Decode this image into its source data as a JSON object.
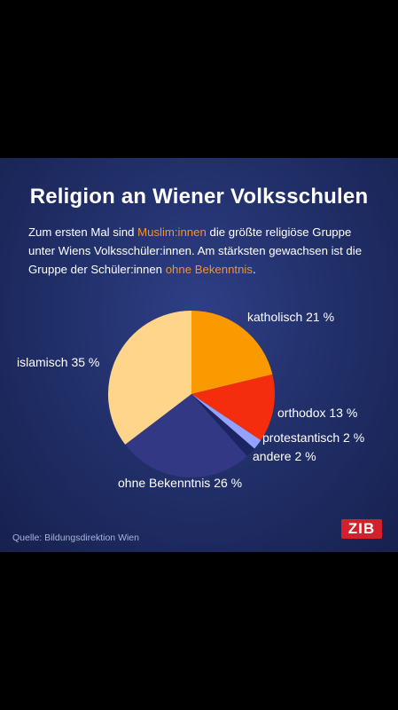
{
  "title": "Religion an Wiener Volksschulen",
  "intro": {
    "part1": "Zum ersten Mal sind ",
    "hl1": "Muslim:innen",
    "part2": " die größte religiöse Gruppe unter Wiens Volksschüler:innen. Am stärksten gewachsen ist die Gruppe der Schüler:innen ",
    "hl2": "ohne Bekenntnis",
    "part3": "."
  },
  "source": "Quelle: Bildungsdirektion Wien",
  "logo": "ZIB",
  "colors": {
    "highlight": "#f7931e",
    "logo": "#d4202a"
  },
  "chart_data": {
    "type": "pie",
    "slices": [
      {
        "name": "katholisch",
        "value": 21,
        "label": "katholisch 21 %",
        "color": "#fb9a00"
      },
      {
        "name": "orthodox",
        "value": 13,
        "label": "orthodox 13 %",
        "color": "#f42d0c"
      },
      {
        "name": "protestantisch",
        "value": 2,
        "label": "protestantisch 2 %",
        "color": "#93a1ff"
      },
      {
        "name": "andere",
        "value": 2,
        "label": "andere 2 %",
        "color": "#1c2461"
      },
      {
        "name": "ohne Bekenntnis",
        "value": 26,
        "label": "ohne Bekenntnis 26 %",
        "color": "#323883"
      },
      {
        "name": "islamisch",
        "value": 35,
        "label": "islamisch 35 %",
        "color": "#ffd58b"
      }
    ]
  }
}
